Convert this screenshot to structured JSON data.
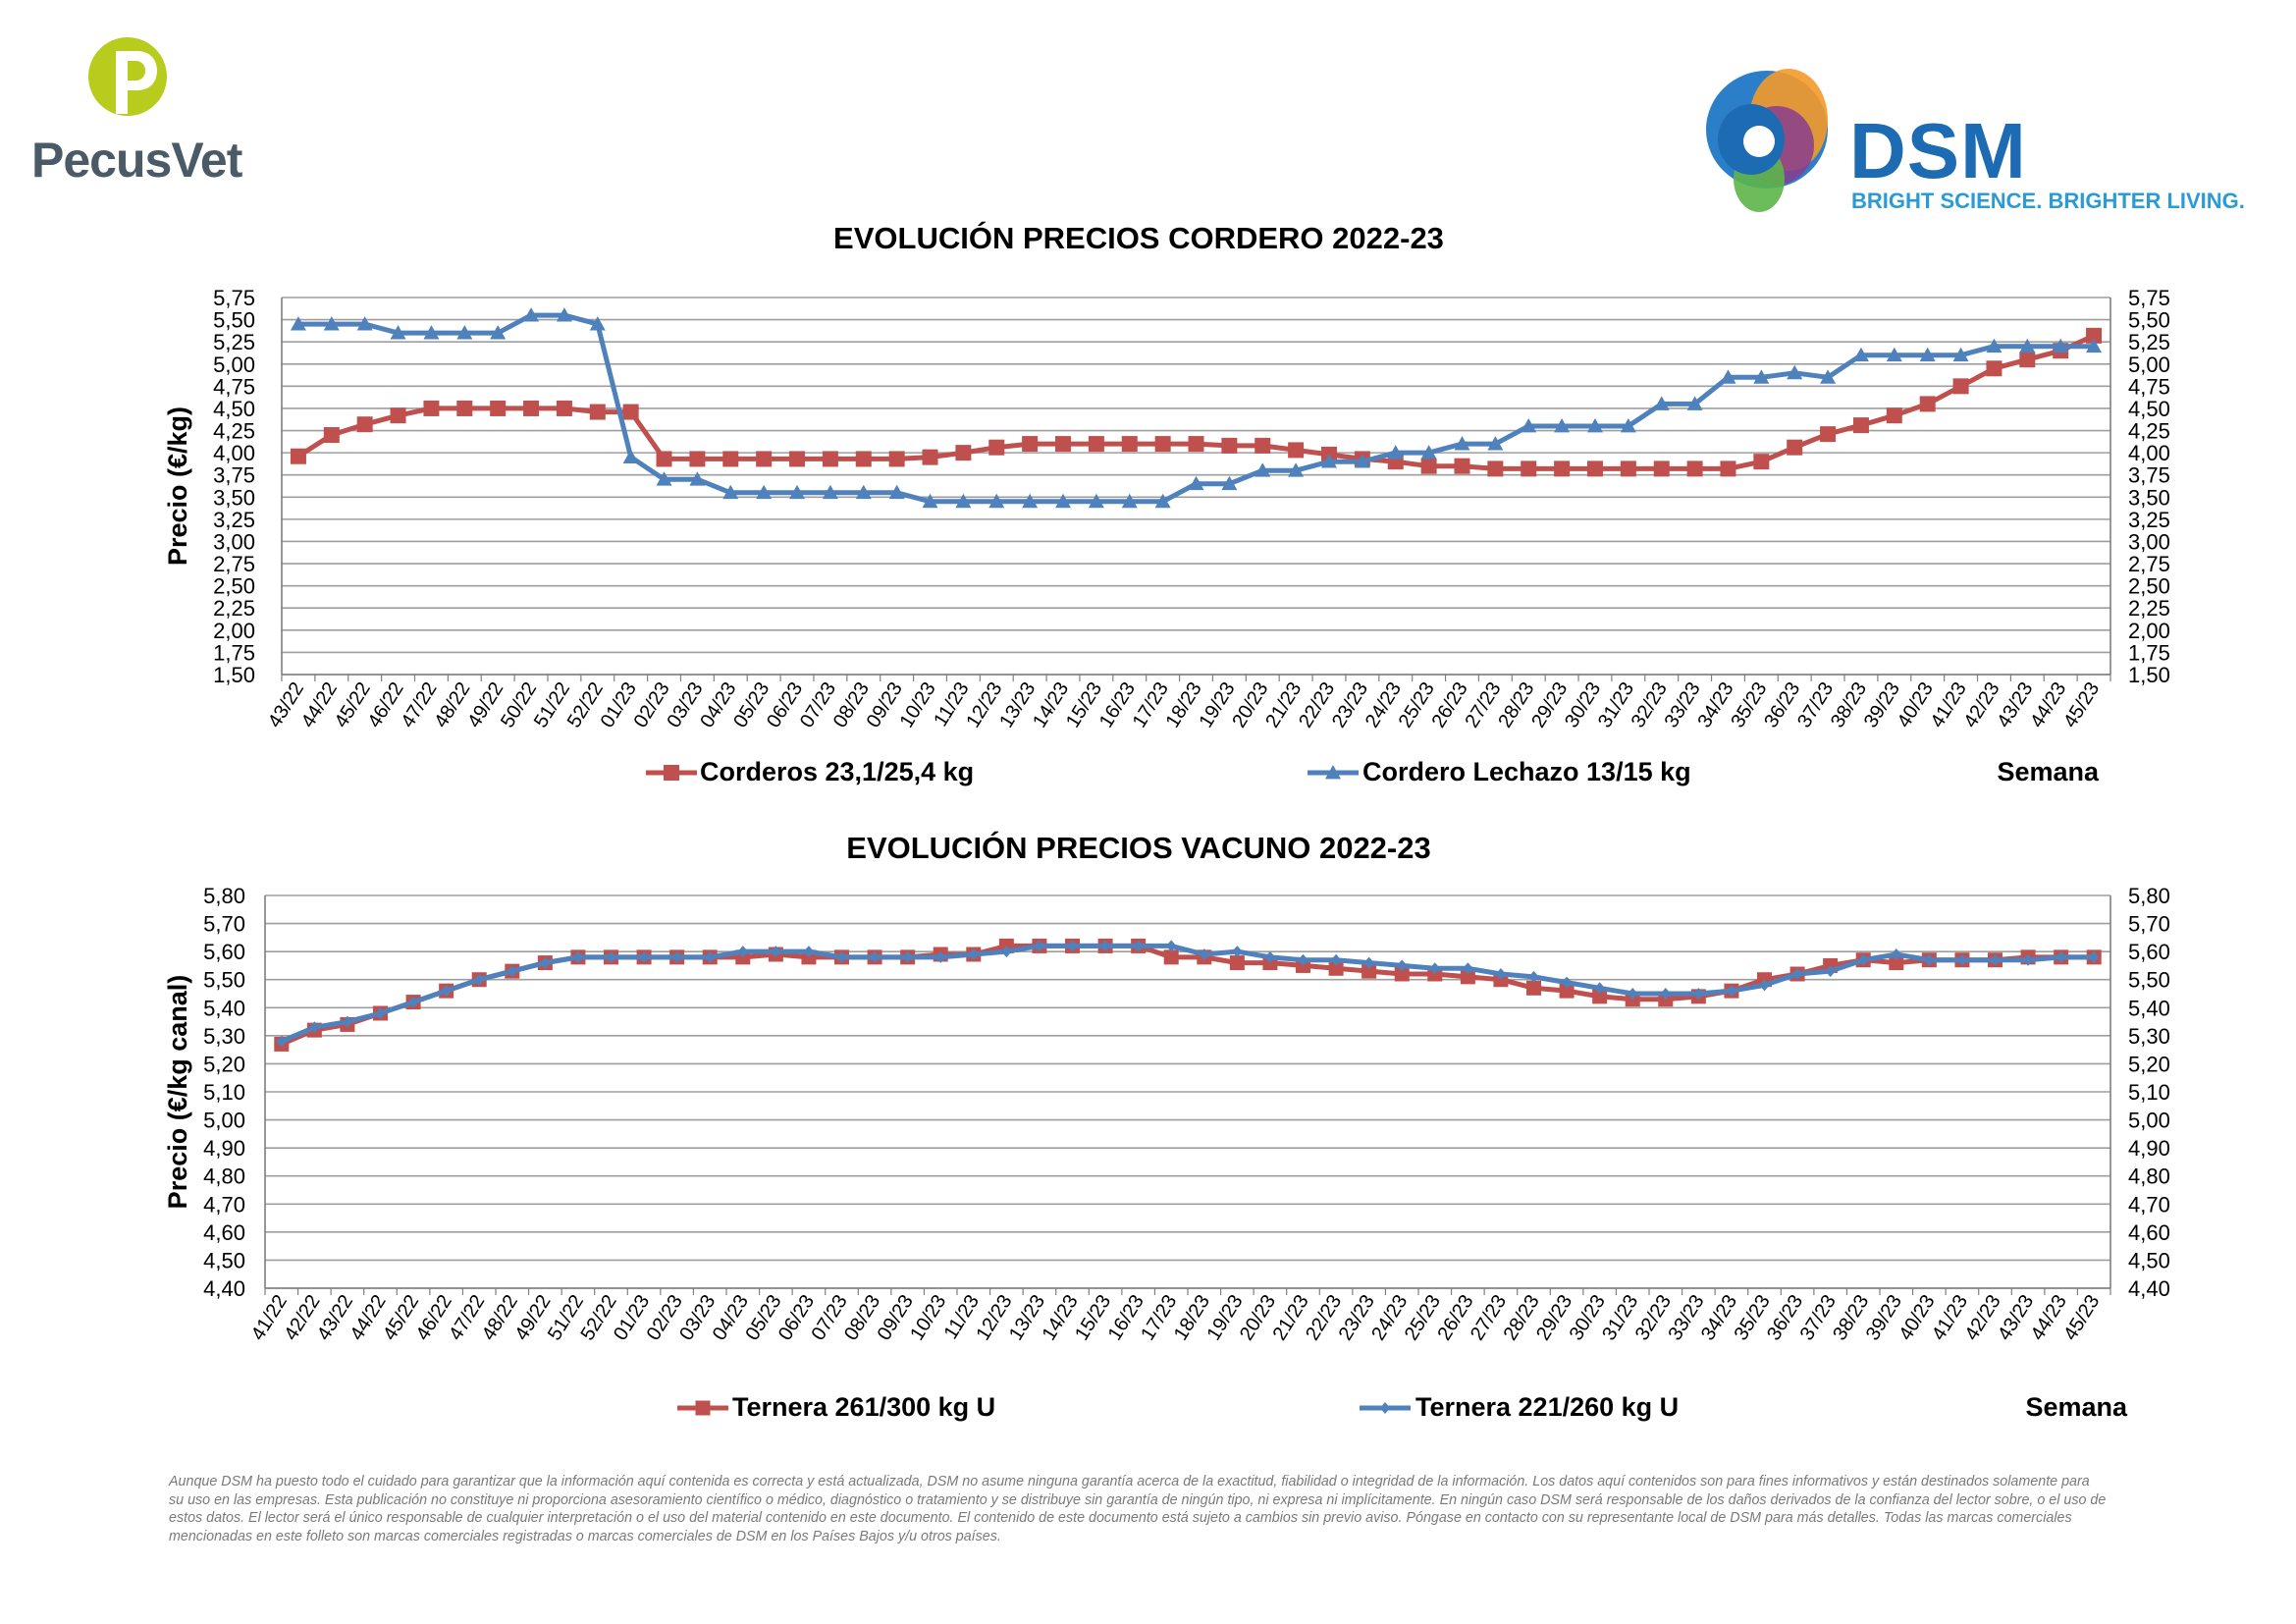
{
  "logos": {
    "left_brand": "PecusVet",
    "right_brand": "DSM",
    "right_tagline": "BRIGHT SCIENCE. BRIGHTER LIVING."
  },
  "colors": {
    "red_series": "#c0504d",
    "blue_series": "#4f81bd",
    "grid": "#9e9e9e",
    "pecus_green": "#b8cc1e",
    "dsm_blue": "#1d6bb3"
  },
  "chart_data": [
    {
      "type": "line",
      "title": "EVOLUCIÓN PRECIOS CORDERO 2022-23",
      "ylabel": "Precio (€/kg)",
      "xlabel": "Semana",
      "ylim": [
        1.5,
        5.75
      ],
      "yticks": [
        "5,75",
        "5,50",
        "5,25",
        "5,00",
        "4,75",
        "4,50",
        "4,25",
        "4,00",
        "3,75",
        "3,50",
        "3,25",
        "3,00",
        "2,75",
        "2,50",
        "2,25",
        "2,00",
        "1,75",
        "1,50"
      ],
      "secondary_y_axis": true,
      "grid": true,
      "legend_position": "bottom",
      "categories": [
        "43/22",
        "44/22",
        "45/22",
        "46/22",
        "47/22",
        "48/22",
        "49/22",
        "50/22",
        "51/22",
        "52/22",
        "01/23",
        "02/23",
        "03/23",
        "04/23",
        "05/23",
        "06/23",
        "07/23",
        "08/23",
        "09/23",
        "10/23",
        "11/23",
        "12/23",
        "13/23",
        "14/23",
        "15/23",
        "16/23",
        "17/23",
        "18/23",
        "19/23",
        "20/23",
        "21/23",
        "22/23",
        "23/23",
        "24/23",
        "25/23",
        "26/23",
        "27/23",
        "28/23",
        "29/23",
        "30/23",
        "31/23",
        "32/23",
        "33/23",
        "34/23",
        "35/23",
        "36/23",
        "37/23",
        "38/23",
        "39/23",
        "40/23",
        "41/23",
        "42/23",
        "43/23",
        "44/23",
        "45/23"
      ],
      "series": [
        {
          "name": "Corderos 23,1/25,4 kg",
          "color": "#c0504d",
          "marker": "square",
          "values": [
            3.96,
            4.2,
            4.32,
            4.42,
            4.5,
            4.5,
            4.5,
            4.5,
            4.5,
            4.46,
            4.46,
            3.93,
            3.93,
            3.93,
            3.93,
            3.93,
            3.93,
            3.93,
            3.93,
            3.95,
            4.0,
            4.06,
            4.1,
            4.1,
            4.1,
            4.1,
            4.1,
            4.1,
            4.08,
            4.08,
            4.03,
            3.98,
            3.93,
            3.9,
            3.85,
            3.85,
            3.82,
            3.82,
            3.82,
            3.82,
            3.82,
            3.82,
            3.82,
            3.82,
            3.9,
            4.06,
            4.21,
            4.31,
            4.42,
            4.55,
            4.75,
            4.95,
            5.05,
            5.15,
            5.32
          ]
        },
        {
          "name": "Cordero Lechazo 13/15 kg",
          "color": "#4f81bd",
          "marker": "triangle",
          "values": [
            5.45,
            5.45,
            5.45,
            5.35,
            5.35,
            5.35,
            5.35,
            5.55,
            5.55,
            5.45,
            3.95,
            3.7,
            3.7,
            3.55,
            3.55,
            3.55,
            3.55,
            3.55,
            3.55,
            3.45,
            3.45,
            3.45,
            3.45,
            3.45,
            3.45,
            3.45,
            3.45,
            3.65,
            3.65,
            3.8,
            3.8,
            3.9,
            3.9,
            4.0,
            4.0,
            4.1,
            4.1,
            4.3,
            4.3,
            4.3,
            4.3,
            4.55,
            4.55,
            4.85,
            4.85,
            4.9,
            4.85,
            5.1,
            5.1,
            5.1,
            5.1,
            5.2,
            5.2,
            5.2,
            5.2
          ]
        }
      ]
    },
    {
      "type": "line",
      "title": "EVOLUCIÓN PRECIOS VACUNO 2022-23",
      "ylabel": "Precio (€/kg canal)",
      "xlabel": "Semana",
      "ylim": [
        4.4,
        5.8
      ],
      "yticks": [
        "5,80",
        "5,70",
        "5,60",
        "5,50",
        "5,40",
        "5,30",
        "5,20",
        "5,10",
        "5,00",
        "4,90",
        "4,80",
        "4,70",
        "4,60",
        "4,50",
        "4,40"
      ],
      "secondary_y_axis": true,
      "grid": true,
      "legend_position": "bottom",
      "categories": [
        "41/22",
        "42/22",
        "43/22",
        "44/22",
        "45/22",
        "46/22",
        "47/22",
        "48/22",
        "49/22",
        "51/22",
        "52/22",
        "01/23",
        "02/23",
        "03/23",
        "04/23",
        "05/23",
        "06/23",
        "07/23",
        "08/23",
        "09/23",
        "10/23",
        "11/23",
        "12/23",
        "13/23",
        "14/23",
        "15/23",
        "16/23",
        "17/23",
        "18/23",
        "19/23",
        "20/23",
        "21/23",
        "22/23",
        "23/23",
        "24/23",
        "25/23",
        "26/23",
        "27/23",
        "28/23",
        "29/23",
        "30/23",
        "31/23",
        "32/23",
        "33/23",
        "34/23",
        "35/23",
        "36/23",
        "37/23",
        "38/23",
        "39/23",
        "40/23",
        "41/23",
        "42/23",
        "43/23",
        "44/23",
        "45/23"
      ],
      "series": [
        {
          "name": "Ternera 261/300 kg U",
          "color": "#c0504d",
          "marker": "square",
          "values": [
            5.27,
            5.32,
            5.34,
            5.38,
            5.42,
            5.46,
            5.5,
            5.53,
            5.56,
            5.58,
            5.58,
            5.58,
            5.58,
            5.58,
            5.58,
            5.59,
            5.58,
            5.58,
            5.58,
            5.58,
            5.59,
            5.59,
            5.62,
            5.62,
            5.62,
            5.62,
            5.62,
            5.58,
            5.58,
            5.56,
            5.56,
            5.55,
            5.54,
            5.53,
            5.52,
            5.52,
            5.51,
            5.5,
            5.47,
            5.46,
            5.44,
            5.43,
            5.43,
            5.44,
            5.46,
            5.5,
            5.52,
            5.55,
            5.57,
            5.56,
            5.57,
            5.57,
            5.57,
            5.58,
            5.58,
            5.58
          ]
        },
        {
          "name": "Ternera 221/260 kg U",
          "color": "#4f81bd",
          "marker": "diamond",
          "values": [
            5.28,
            5.33,
            5.35,
            5.38,
            5.42,
            5.46,
            5.5,
            5.53,
            5.56,
            5.58,
            5.58,
            5.58,
            5.58,
            5.58,
            5.6,
            5.6,
            5.6,
            5.58,
            5.58,
            5.58,
            5.58,
            5.59,
            5.6,
            5.62,
            5.62,
            5.62,
            5.62,
            5.62,
            5.59,
            5.6,
            5.58,
            5.57,
            5.57,
            5.56,
            5.55,
            5.54,
            5.54,
            5.52,
            5.51,
            5.49,
            5.47,
            5.45,
            5.45,
            5.45,
            5.46,
            5.48,
            5.52,
            5.53,
            5.57,
            5.59,
            5.57,
            5.57,
            5.57,
            5.57,
            5.58,
            5.58
          ]
        }
      ]
    }
  ],
  "disclaimer": "Aunque DSM ha puesto todo el cuidado para garantizar que la información aquí contenida es correcta y está actualizada, DSM no asume ninguna garantía acerca de la exactitud, fiabilidad o integridad de la información. Los datos aquí contenidos son para fines informativos y están destinados solamente para su uso en las empresas. Esta publicación no constituye ni proporciona asesoramiento científico o médico, diagnóstico o tratamiento y se distribuye sin garantía de ningún tipo, ni expresa ni implícitamente. En ningún caso DSM será responsable de los daños derivados de la confianza del lector sobre, o el uso de estos datos. El lector será el único responsable de cualquier interpretación o el uso del material contenido en este documento. El contenido de este documento está sujeto a cambios sin previo aviso. Póngase en contacto con su representante local de DSM para más detalles. Todas las marcas comerciales mencionadas en este folleto son marcas comerciales registradas o marcas comerciales de DSM en los Países Bajos y/u otros países."
}
